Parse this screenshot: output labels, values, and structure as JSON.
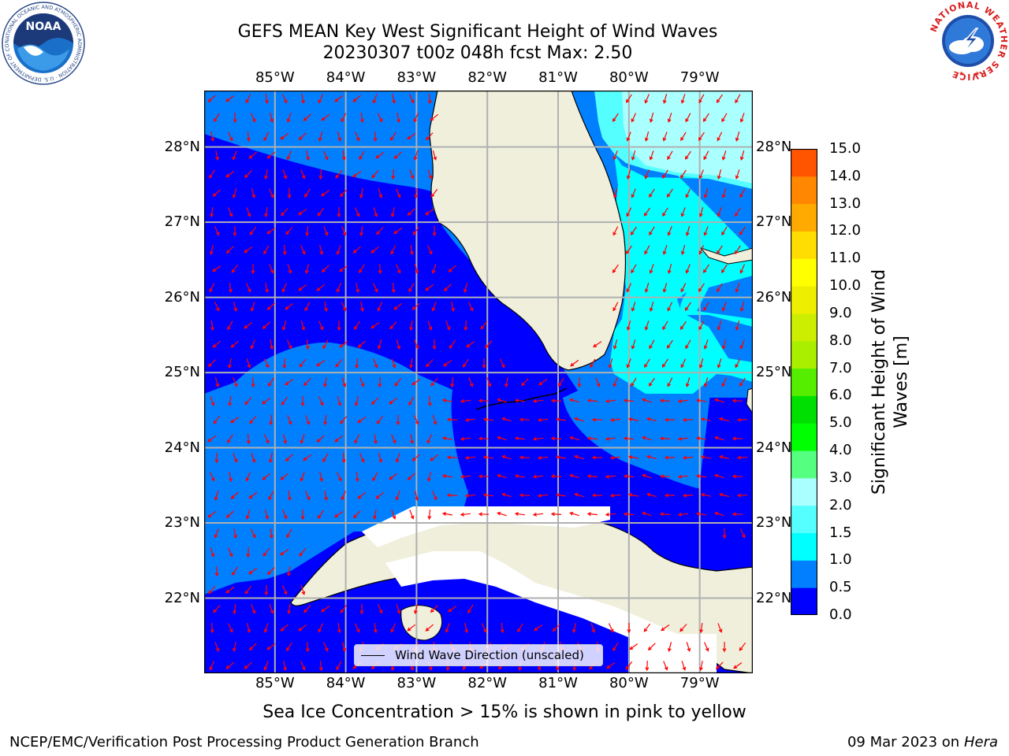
{
  "title": {
    "line1": "GEFS MEAN Key West Significant Height of Wind Waves",
    "line2": "20230307 t00z 048h fcst   Max: 2.50"
  },
  "map": {
    "lon_range": [
      -86.0,
      -78.25
    ],
    "lat_range": [
      21.0,
      28.75
    ],
    "lon_ticks": [
      {
        "value": -85,
        "label": "85°W"
      },
      {
        "value": -84,
        "label": "84°W"
      },
      {
        "value": -83,
        "label": "83°W"
      },
      {
        "value": -82,
        "label": "82°W"
      },
      {
        "value": -81,
        "label": "81°W"
      },
      {
        "value": -80,
        "label": "80°W"
      },
      {
        "value": -79,
        "label": "79°W"
      }
    ],
    "lat_ticks": [
      {
        "value": 28,
        "label": "28°N"
      },
      {
        "value": 27,
        "label": "27°N"
      },
      {
        "value": 26,
        "label": "26°N"
      },
      {
        "value": 25,
        "label": "25°N"
      },
      {
        "value": 24,
        "label": "24°N"
      },
      {
        "value": 23,
        "label": "23°N"
      },
      {
        "value": 22,
        "label": "22°N"
      }
    ],
    "colors": {
      "band_0_05": "#0000ff",
      "band_05_10": "#0080ff",
      "band_10_15": "#00ffff",
      "band_15_20": "#55ffff",
      "band_20_30": "#aaffff",
      "land": "#efefdc",
      "gridlines": "#b0b0b0",
      "arrows": "#ff0000",
      "coastline": "#000000"
    }
  },
  "legend": {
    "label": "Wind Wave Direction (unscaled)"
  },
  "colorbar": {
    "label_line1": "Significant Height of Wind",
    "label_line2": "Waves [m]",
    "levels": [
      0.0,
      0.5,
      1.0,
      1.5,
      2.0,
      3.0,
      4.0,
      5.0,
      6.0,
      7.0,
      8.0,
      9.0,
      10.0,
      11.0,
      12.0,
      13.0,
      14.0,
      15.0
    ],
    "tick_labels": [
      "0.0",
      "0.5",
      "1.0",
      "1.5",
      "2.0",
      "3.0",
      "4.0",
      "5.0",
      "6.0",
      "7.0",
      "8.0",
      "9.0",
      "10.0",
      "11.0",
      "12.0",
      "13.0",
      "14.0",
      "15.0"
    ],
    "colors": [
      "#0000ff",
      "#0080ff",
      "#00ffff",
      "#55ffff",
      "#aaffff",
      "#55ff80",
      "#00ff00",
      "#00e000",
      "#55ee00",
      "#aaee00",
      "#ccee00",
      "#eeee00",
      "#ffff00",
      "#ffdd00",
      "#ffaa00",
      "#ff8800",
      "#ff5500",
      "#ff2200"
    ]
  },
  "notes": {
    "ice": "Sea Ice Concentration > 15% is shown in pink to yellow",
    "footer_left": "NCEP/EMC/Verification Post Processing Product Generation Branch",
    "footer_date": "09 Mar 2023 on",
    "footer_system": "Hera"
  },
  "logos": {
    "noaa": "NOAA",
    "noaa_ring_text": "NATIONAL OCEANIC AND ATMOSPHERIC ADMINISTRATION · U.S. DEPARTMENT OF COMMERCE",
    "nws_ring_text": "NATIONAL WEATHER SERVICE"
  }
}
